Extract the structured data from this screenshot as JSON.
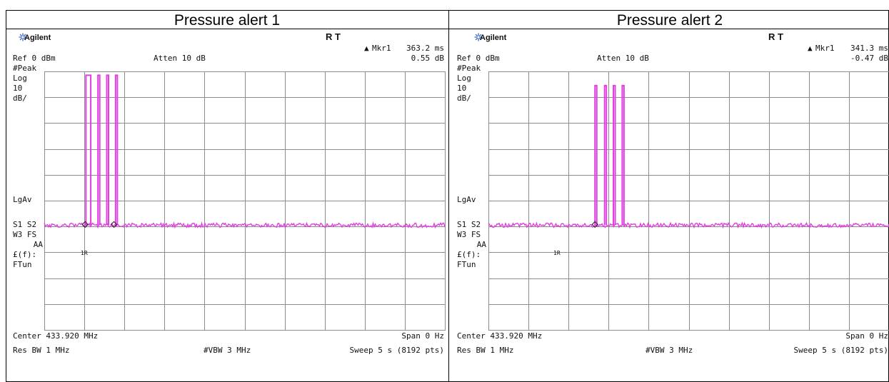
{
  "panels": [
    {
      "title": "Pressure alert 1",
      "brand": "Agilent",
      "rt": "R   T",
      "marker_label": "Mkr1",
      "marker_time": "363.2 ms",
      "marker_level": "0.55 dB",
      "ref": "Ref 0 dBm",
      "atten": "Atten 10 dB",
      "left_labels": [
        "#Peak",
        "Log",
        "10",
        "dB/",
        "LgAv",
        "S1  S2",
        "W3  FS",
        "AA",
        "£(f):",
        "FTun"
      ],
      "center": "Center 433.920 MHz",
      "span": "Span 0 Hz",
      "res_bw": "Res BW 1 MHz",
      "vbw": "#VBW 3 MHz",
      "sweep": "Sweep 5 s (8192 pts)",
      "marker_tag": "1R",
      "chart_data": {
        "type": "line",
        "x_unit": "s",
        "xlim": [
          0,
          5
        ],
        "ylim": [
          -100,
          0
        ],
        "y_div_db": 10,
        "noise_floor_db": -59.5,
        "pulses": [
          {
            "start": 0.52,
            "end": 0.58,
            "level": -1.5
          },
          {
            "start": 0.67,
            "end": 0.69,
            "level": -1.5
          },
          {
            "start": 0.78,
            "end": 0.8,
            "level": -1.5
          },
          {
            "start": 0.89,
            "end": 0.91,
            "level": -1.5
          }
        ],
        "marker_times": [
          0.51,
          0.87
        ]
      }
    },
    {
      "title": "Pressure alert 2",
      "brand": "Agilent",
      "rt": "R   T",
      "marker_label": "Mkr1",
      "marker_time": "341.3 ms",
      "marker_level": "-0.47 dB",
      "ref": "Ref 0 dBm",
      "atten": "Atten 10 dB",
      "left_labels": [
        "#Peak",
        "Log",
        "10",
        "dB/",
        "LgAv",
        "S1  S2",
        "W3  FS",
        "AA",
        "£(f):",
        "FTun"
      ],
      "center": "Center 433.920 MHz",
      "span": "Span 0 Hz",
      "res_bw": "Res BW 1 MHz",
      "vbw": "#VBW 3 MHz",
      "sweep": "Sweep 5 s (8192 pts)",
      "marker_tag": "1R",
      "chart_data": {
        "type": "line",
        "x_unit": "s",
        "xlim": [
          0,
          5
        ],
        "ylim": [
          -100,
          0
        ],
        "y_div_db": 10,
        "noise_floor_db": -59.5,
        "pulses": [
          {
            "start": 1.33,
            "end": 1.34,
            "level": -5.5
          },
          {
            "start": 1.45,
            "end": 1.46,
            "level": -5.5
          },
          {
            "start": 1.56,
            "end": 1.57,
            "level": -5.5
          },
          {
            "start": 1.67,
            "end": 1.68,
            "level": -5.5
          }
        ],
        "marker_times": [
          1.33
        ]
      }
    }
  ],
  "colors": {
    "trace": "#e040e0",
    "grid": "#8c8c8c",
    "text": "#111111",
    "brand_star": "#3a66c4"
  }
}
